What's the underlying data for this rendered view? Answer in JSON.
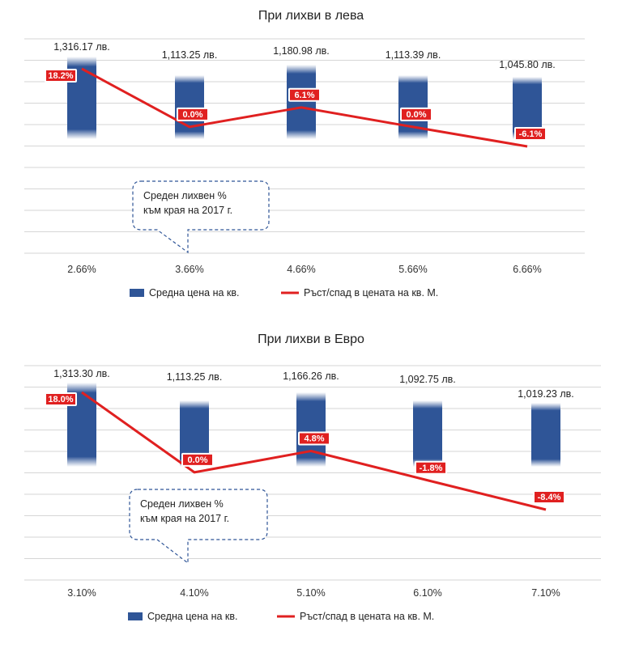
{
  "chart_data": [
    {
      "type": "bar",
      "title": "При лихви в лева",
      "categories": [
        "2.66%",
        "3.66%",
        "4.66%",
        "5.66%",
        "6.66%"
      ],
      "series": [
        {
          "name": "Средна цена на кв.",
          "kind": "bar",
          "values": [
            1316.17,
            1113.25,
            1180.98,
            1113.39,
            1045.8
          ],
          "labels": [
            "1,316.17 лв.",
            "1,113.25 лв.",
            "1,180.98 лв.",
            "1,113.39 лв.",
            "1,045.80 лв."
          ],
          "color": "#2f5597"
        },
        {
          "name": "Ръст/спад в цената на кв. М.",
          "kind": "line",
          "values": [
            18.2,
            0.0,
            6.1,
            0.0,
            -6.1
          ],
          "labels": [
            "18.2%",
            "0.0%",
            "6.1%",
            "0.0%",
            "-6.1%"
          ],
          "color": "#e02020"
        }
      ],
      "annotation": [
        "Среден лихвен %",
        "към края на 2017 г."
      ],
      "legend_position": "bottom"
    },
    {
      "type": "bar",
      "title": "При лихви в Евро",
      "categories": [
        "3.10%",
        "4.10%",
        "5.10%",
        "6.10%",
        "7.10%"
      ],
      "series": [
        {
          "name": "Средна цена на кв.",
          "kind": "bar",
          "values": [
            1313.3,
            1113.25,
            1166.26,
            1092.75,
            1019.23
          ],
          "labels": [
            "1,313.30 лв.",
            "1,113.25 лв.",
            "1,166.26 лв.",
            "1,092.75 лв.",
            "1,019.23 лв."
          ],
          "color": "#2f5597"
        },
        {
          "name": "Ръст/спад в цената на кв. М.",
          "kind": "line",
          "values": [
            18.0,
            0.0,
            4.8,
            -1.8,
            -8.4
          ],
          "labels": [
            "18.0%",
            "0.0%",
            "4.8%",
            "-1.8%",
            "-8.4%"
          ],
          "color": "#e02020"
        }
      ],
      "annotation": [
        "Среден лихвен %",
        "към края на 2017 г."
      ],
      "legend_position": "bottom"
    }
  ]
}
